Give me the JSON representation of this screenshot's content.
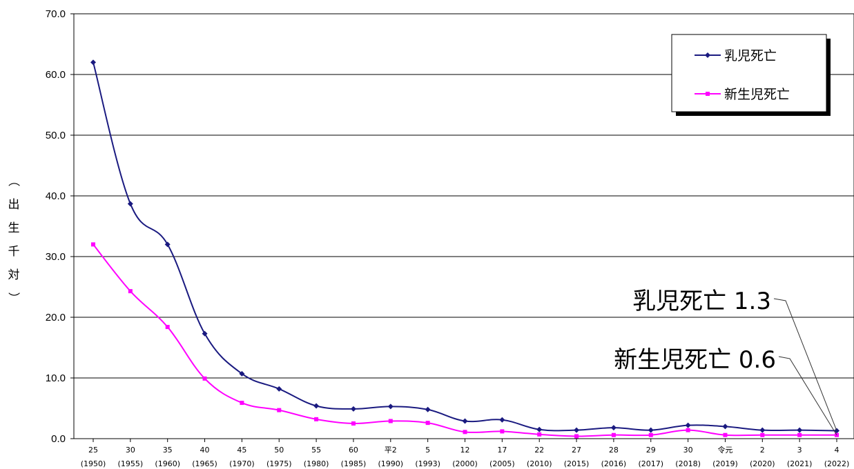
{
  "chart_data": {
    "type": "line",
    "title": "",
    "xlabel": "",
    "ylabel": "（出生千対）",
    "ylim": [
      0,
      70
    ],
    "yticks": [
      "0.0",
      "10.0",
      "20.0",
      "30.0",
      "40.0",
      "50.0",
      "60.0",
      "70.0"
    ],
    "categories": [
      {
        "era": "25",
        "year": "(1950)"
      },
      {
        "era": "30",
        "year": "(1955)"
      },
      {
        "era": "35",
        "year": "(1960)"
      },
      {
        "era": "40",
        "year": "(1965)"
      },
      {
        "era": "45",
        "year": "(1970)"
      },
      {
        "era": "50",
        "year": "(1975)"
      },
      {
        "era": "55",
        "year": "(1980)"
      },
      {
        "era": "60",
        "year": "(1985)"
      },
      {
        "era": "平2",
        "year": "(1990)"
      },
      {
        "era": "5",
        "year": "(1993)"
      },
      {
        "era": "12",
        "year": "(2000)"
      },
      {
        "era": "17",
        "year": "(2005)"
      },
      {
        "era": "22",
        "year": "(2010)"
      },
      {
        "era": "27",
        "year": "(2015)"
      },
      {
        "era": "28",
        "year": "(2016)"
      },
      {
        "era": "29",
        "year": "(2017)"
      },
      {
        "era": "30",
        "year": "(2018)"
      },
      {
        "era": "令元",
        "year": "(2019)"
      },
      {
        "era": "2",
        "year": "(2020)"
      },
      {
        "era": "3",
        "year": "(2021)"
      },
      {
        "era": "4",
        "year": "(2022)"
      }
    ],
    "series": [
      {
        "name": "乳児死亡",
        "color": "#1a1a80",
        "marker": "diamond",
        "values": [
          62.0,
          38.7,
          32.0,
          17.3,
          10.7,
          8.2,
          5.4,
          4.9,
          5.3,
          4.8,
          2.9,
          3.1,
          1.5,
          1.4,
          1.8,
          1.4,
          2.2,
          2.0,
          1.4,
          1.4,
          1.3
        ]
      },
      {
        "name": "新生児死亡",
        "color": "#ff00ff",
        "marker": "square",
        "values": [
          32.0,
          24.3,
          18.4,
          9.9,
          5.9,
          4.7,
          3.2,
          2.5,
          2.9,
          2.6,
          1.1,
          1.2,
          0.7,
          0.4,
          0.6,
          0.6,
          1.4,
          0.6,
          0.6,
          0.6,
          0.6
        ]
      }
    ],
    "grid": true,
    "legend": "top-right",
    "annotations": [
      {
        "label": "乳児死亡 1.3",
        "series": 0,
        "index": 20
      },
      {
        "label": "新生児死亡 0.6",
        "series": 1,
        "index": 20
      }
    ]
  }
}
